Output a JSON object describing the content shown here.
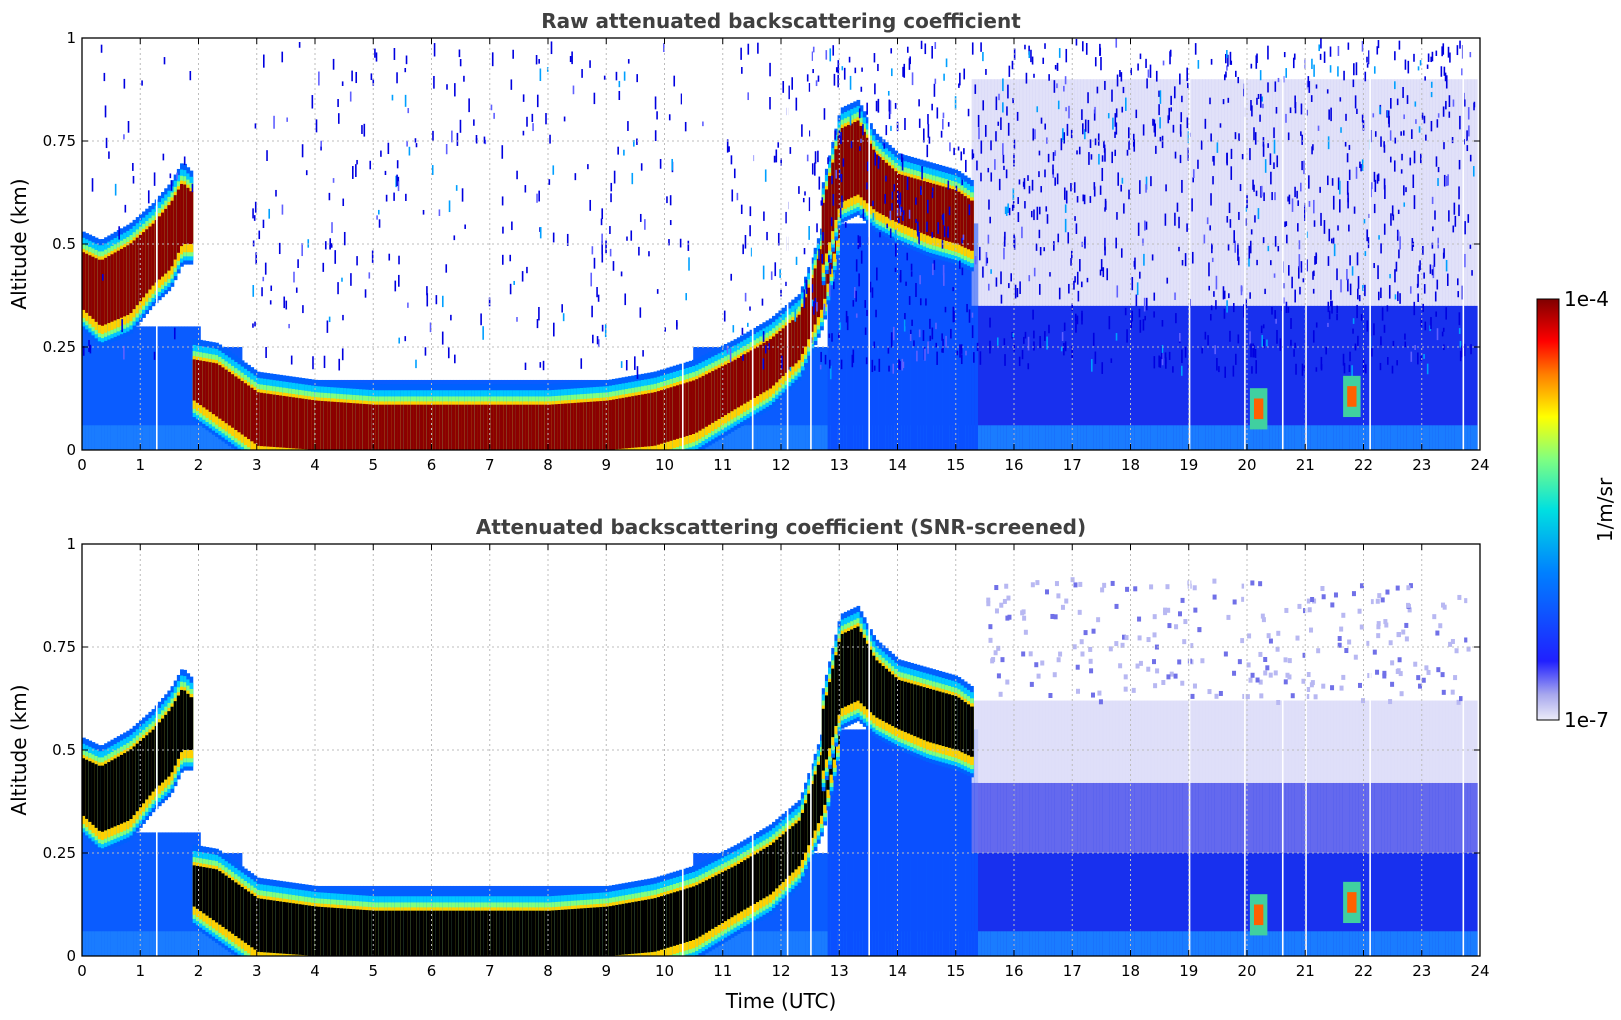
{
  "chart_data": [
    {
      "type": "heatmap",
      "title": "Raw attenuated backscattering coefficient",
      "xlabel": "",
      "ylabel": "Altitude (km)",
      "xlim": [
        0,
        24
      ],
      "ylim": [
        0,
        1
      ],
      "x_ticks": [
        0,
        1,
        2,
        3,
        4,
        5,
        6,
        7,
        8,
        9,
        10,
        11,
        12,
        13,
        14,
        15,
        16,
        17,
        18,
        19,
        20,
        21,
        22,
        23,
        24
      ],
      "y_ticks": [
        "0",
        "0.25",
        "0.5",
        "0.75",
        "1"
      ],
      "grid": true,
      "layers": [
        {
          "x": [
            0,
            0.3,
            0.8,
            1.2,
            1.5,
            1.7,
            1.9
          ],
          "top": [
            0.48,
            0.46,
            0.5,
            0.55,
            0.6,
            0.65,
            0.62
          ],
          "bottom": [
            0.34,
            0.3,
            0.33,
            0.4,
            0.44,
            0.5,
            0.5
          ],
          "level": 1.0
        },
        {
          "x": [
            1.9,
            2.3,
            2.7,
            3.0,
            4,
            5,
            6,
            7,
            8,
            9,
            9.8,
            10.5,
            11.2,
            11.8,
            12.3,
            12.7,
            13.0
          ],
          "top": [
            0.22,
            0.21,
            0.17,
            0.14,
            0.12,
            0.11,
            0.11,
            0.11,
            0.11,
            0.12,
            0.14,
            0.17,
            0.22,
            0.27,
            0.33,
            0.5,
            0.7
          ],
          "bottom": [
            0.12,
            0.08,
            0.04,
            0.01,
            0.0,
            0.0,
            0.0,
            0.0,
            0.0,
            0.0,
            0.01,
            0.04,
            0.1,
            0.15,
            0.22,
            0.35,
            0.55
          ],
          "level": 1.0
        },
        {
          "x": [
            12.7,
            13.0,
            13.3,
            13.6,
            14.0,
            14.5,
            15.0,
            15.3
          ],
          "top": [
            0.6,
            0.78,
            0.8,
            0.72,
            0.67,
            0.65,
            0.63,
            0.6
          ],
          "bottom": [
            0.45,
            0.6,
            0.62,
            0.58,
            0.55,
            0.52,
            0.5,
            0.48
          ],
          "level": 1.0
        }
      ],
      "colorbar": {
        "min_label": "1e-7",
        "max_label": "1e-4",
        "unit": "1/m/sr"
      }
    },
    {
      "type": "heatmap",
      "title": "Attenuated backscattering coefficient (SNR-screened)",
      "xlabel": "Time (UTC)",
      "ylabel": "Altitude (km)",
      "xlim": [
        0,
        24
      ],
      "ylim": [
        0,
        1
      ],
      "x_ticks": [
        0,
        1,
        2,
        3,
        4,
        5,
        6,
        7,
        8,
        9,
        10,
        11,
        12,
        13,
        14,
        15,
        16,
        17,
        18,
        19,
        20,
        21,
        22,
        23,
        24
      ],
      "y_ticks": [
        "0",
        "0.25",
        "0.5",
        "0.75",
        "1"
      ],
      "grid": true,
      "colorbar": {
        "min_label": "1e-7",
        "max_label": "1e-4",
        "unit": "1/m/sr"
      }
    }
  ],
  "colorbar": {
    "max_label": "1e-4",
    "min_label": "1e-7",
    "unit": "1/m/sr"
  }
}
